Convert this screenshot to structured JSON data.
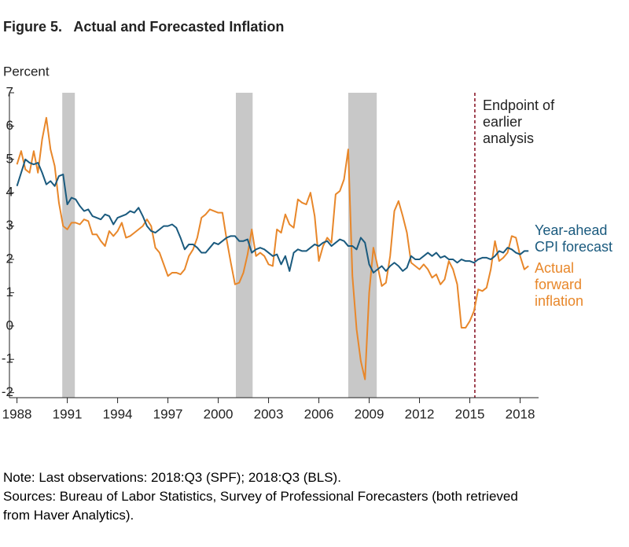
{
  "chart_data": {
    "type": "line",
    "title": "Figure 5.   Actual and Forecasted Inflation",
    "y_label": "Percent",
    "annotation": "Endpoint of earlier analysis",
    "vline": 2015.3,
    "shaded_periods": [
      [
        1990.7,
        1991.45
      ],
      [
        2001.05,
        2002.05
      ],
      [
        2007.75,
        2009.45
      ]
    ],
    "xlim": [
      1987.55,
      2019.1
    ],
    "xticks": [
      1988,
      1991,
      1994,
      1997,
      2000,
      2003,
      2006,
      2009,
      2012,
      2015,
      2018
    ],
    "ylim": [
      -2.15,
      7
    ],
    "yticks": [
      -2,
      -1,
      0,
      1,
      2,
      3,
      4,
      5,
      6,
      7
    ],
    "x": [
      1988,
      1988.25,
      1988.5,
      1988.75,
      1989,
      1989.25,
      1989.5,
      1989.75,
      1990,
      1990.25,
      1990.5,
      1990.75,
      1991,
      1991.25,
      1991.5,
      1991.75,
      1992,
      1992.25,
      1992.5,
      1992.75,
      1993,
      1993.25,
      1993.5,
      1993.75,
      1994,
      1994.25,
      1994.5,
      1994.75,
      1995,
      1995.25,
      1995.5,
      1995.75,
      1996,
      1996.25,
      1996.5,
      1996.75,
      1997,
      1997.25,
      1997.5,
      1997.75,
      1998,
      1998.25,
      1998.5,
      1998.75,
      1999,
      1999.25,
      1999.5,
      1999.75,
      2000,
      2000.25,
      2000.5,
      2000.75,
      2001,
      2001.25,
      2001.5,
      2001.75,
      2002,
      2002.25,
      2002.5,
      2002.75,
      2003,
      2003.25,
      2003.5,
      2003.75,
      2004,
      2004.25,
      2004.5,
      2004.75,
      2005,
      2005.25,
      2005.5,
      2005.75,
      2006,
      2006.25,
      2006.5,
      2006.75,
      2007,
      2007.25,
      2007.5,
      2007.75,
      2008,
      2008.25,
      2008.5,
      2008.75,
      2009,
      2009.25,
      2009.5,
      2009.75,
      2010,
      2010.25,
      2010.5,
      2010.75,
      2011,
      2011.25,
      2011.5,
      2011.75,
      2012,
      2012.25,
      2012.5,
      2012.75,
      2013,
      2013.25,
      2013.5,
      2013.75,
      2014,
      2014.25,
      2014.5,
      2014.75,
      2015,
      2015.25,
      2015.5,
      2015.75,
      2016,
      2016.25,
      2016.5,
      2016.75,
      2017,
      2017.25,
      2017.5,
      2017.75,
      2018,
      2018.25,
      2018.5
    ],
    "series": [
      {
        "name": "Year-ahead CPI forecast",
        "color": "#1a5a7e",
        "values": [
          4.2,
          4.6,
          5.0,
          4.9,
          4.85,
          4.9,
          4.6,
          4.25,
          4.35,
          4.2,
          4.5,
          4.55,
          3.65,
          3.85,
          3.8,
          3.6,
          3.45,
          3.5,
          3.3,
          3.25,
          3.2,
          3.35,
          3.3,
          3.05,
          3.25,
          3.3,
          3.35,
          3.45,
          3.4,
          3.55,
          3.3,
          3.0,
          2.85,
          2.8,
          2.9,
          3.0,
          3.0,
          3.05,
          2.95,
          2.65,
          2.3,
          2.45,
          2.45,
          2.35,
          2.2,
          2.2,
          2.35,
          2.5,
          2.45,
          2.55,
          2.65,
          2.7,
          2.7,
          2.55,
          2.55,
          2.6,
          2.2,
          2.3,
          2.35,
          2.3,
          2.2,
          2.1,
          2.15,
          1.85,
          2.1,
          1.65,
          2.2,
          2.3,
          2.25,
          2.25,
          2.35,
          2.45,
          2.4,
          2.5,
          2.55,
          2.4,
          2.5,
          2.6,
          2.55,
          2.4,
          2.4,
          2.3,
          2.65,
          2.5,
          1.85,
          1.6,
          1.7,
          1.8,
          1.65,
          1.8,
          1.9,
          1.8,
          1.65,
          1.75,
          2.1,
          2.0,
          2.0,
          2.1,
          2.2,
          2.1,
          2.2,
          2.05,
          2.1,
          2.0,
          2.0,
          1.9,
          2.0,
          1.95,
          1.95,
          1.9,
          2.0,
          2.05,
          2.05,
          2.0,
          2.1,
          2.25,
          2.2,
          2.35,
          2.3,
          2.2,
          2.15,
          2.25,
          2.25
        ]
      },
      {
        "name": "Actual forward inflation",
        "color": "#e8872a",
        "values": [
          4.85,
          5.25,
          4.7,
          4.6,
          5.25,
          4.6,
          5.6,
          6.25,
          5.3,
          4.8,
          3.7,
          3.0,
          2.9,
          3.1,
          3.1,
          3.05,
          3.2,
          3.15,
          2.75,
          2.75,
          2.55,
          2.4,
          2.85,
          2.7,
          2.85,
          3.1,
          2.65,
          2.7,
          2.8,
          2.9,
          3.0,
          3.2,
          3.0,
          2.35,
          2.2,
          1.85,
          1.5,
          1.6,
          1.6,
          1.55,
          1.7,
          2.1,
          2.3,
          2.65,
          3.25,
          3.35,
          3.5,
          3.45,
          3.4,
          3.4,
          2.6,
          1.9,
          1.25,
          1.3,
          1.6,
          2.15,
          2.9,
          2.1,
          2.2,
          2.1,
          1.85,
          1.8,
          2.9,
          2.8,
          3.35,
          3.05,
          2.95,
          3.8,
          3.7,
          3.65,
          4.0,
          3.3,
          1.95,
          2.4,
          2.65,
          2.5,
          3.95,
          4.05,
          4.4,
          5.3,
          1.5,
          -0.1,
          -1.05,
          -1.6,
          1.0,
          2.35,
          1.8,
          1.2,
          1.3,
          2.1,
          3.45,
          3.75,
          3.3,
          2.8,
          1.9,
          1.8,
          1.7,
          1.85,
          1.7,
          1.45,
          1.55,
          1.25,
          1.4,
          1.95,
          1.7,
          1.25,
          -0.05,
          -0.05,
          0.15,
          0.45,
          1.1,
          1.05,
          1.15,
          1.7,
          2.55,
          1.95,
          2.05,
          2.2,
          2.7,
          2.65,
          2.1,
          1.7,
          1.8
        ]
      }
    ],
    "note": "Note: Last observations: 2018:Q3 (SPF); 2018:Q3 (BLS).",
    "sources": "Sources: Bureau of Labor Statistics, Survey of Professional Forecasters (both retrieved from Haver Analytics)."
  }
}
